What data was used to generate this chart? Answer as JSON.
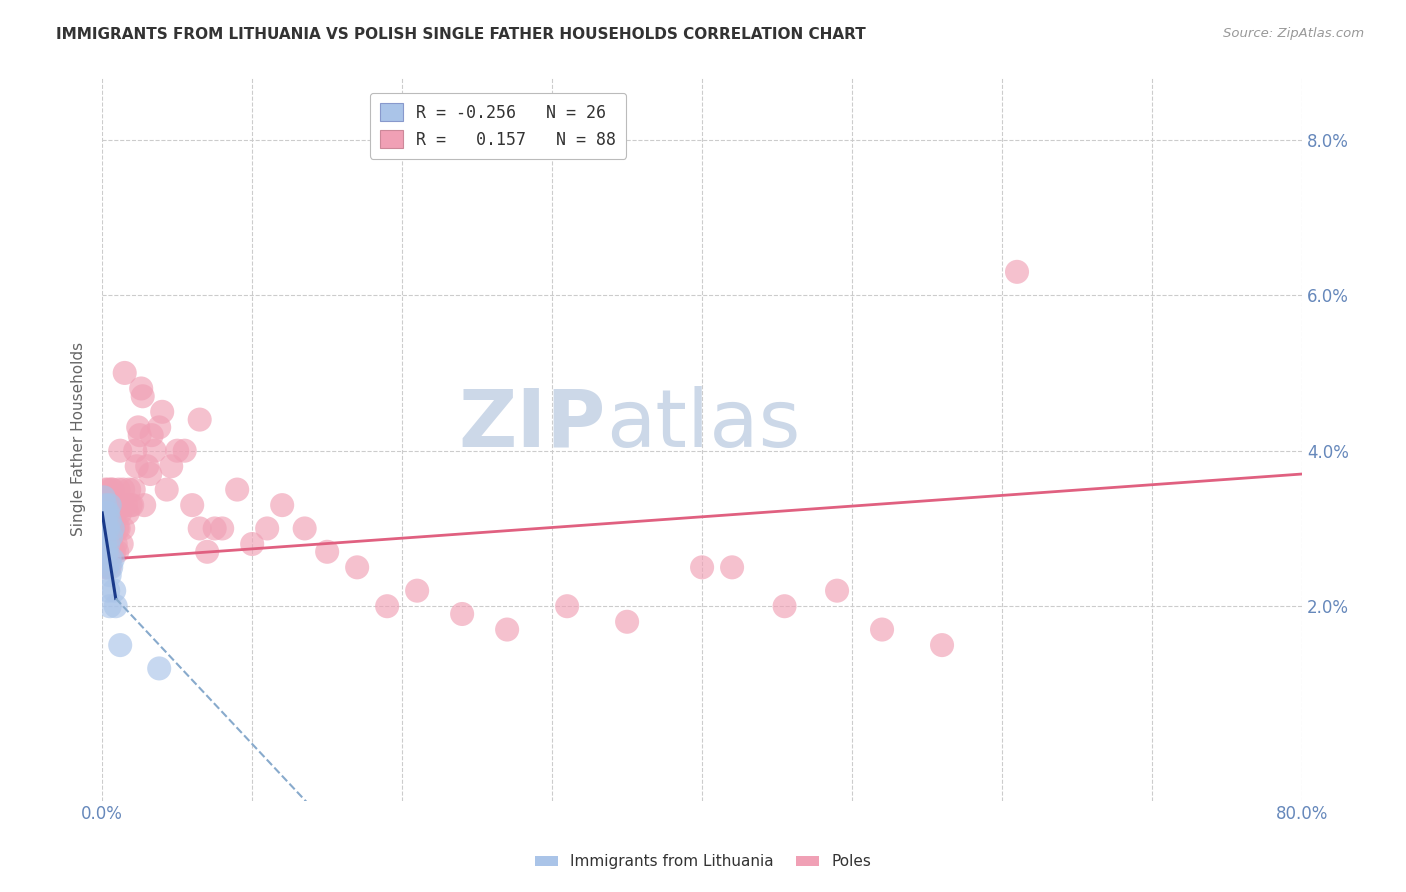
{
  "title": "IMMIGRANTS FROM LITHUANIA VS POLISH SINGLE FATHER HOUSEHOLDS CORRELATION CHART",
  "source": "Source: ZipAtlas.com",
  "ylabel": "Single Father Households",
  "xlim": [
    0.0,
    0.8
  ],
  "ylim": [
    -0.005,
    0.088
  ],
  "plot_ylim": [
    0.0,
    0.088
  ],
  "yticks": [
    0.0,
    0.02,
    0.04,
    0.06,
    0.08
  ],
  "ytick_labels_right": [
    "",
    "2.0%",
    "4.0%",
    "6.0%",
    "8.0%"
  ],
  "xticks": [
    0.0,
    0.1,
    0.2,
    0.3,
    0.4,
    0.5,
    0.6,
    0.7,
    0.8
  ],
  "xtick_labels": [
    "0.0%",
    "",
    "",
    "",
    "",
    "",
    "",
    "",
    "80.0%"
  ],
  "legend_line1": "R = -0.256   N = 26",
  "legend_line2": "R =   0.157   N = 88",
  "legend_color_blue": "#aac4e8",
  "legend_color_pink": "#f0a0b5",
  "series_blue": {
    "name": "Immigrants from Lithuania",
    "color": "#aac4e8",
    "x": [
      0.001,
      0.001,
      0.002,
      0.002,
      0.002,
      0.003,
      0.003,
      0.003,
      0.003,
      0.004,
      0.004,
      0.004,
      0.004,
      0.005,
      0.005,
      0.005,
      0.005,
      0.005,
      0.006,
      0.006,
      0.007,
      0.007,
      0.008,
      0.009,
      0.012,
      0.038
    ],
    "y": [
      0.034,
      0.03,
      0.033,
      0.031,
      0.028,
      0.032,
      0.03,
      0.027,
      0.025,
      0.032,
      0.03,
      0.028,
      0.022,
      0.033,
      0.031,
      0.026,
      0.024,
      0.02,
      0.029,
      0.025,
      0.03,
      0.026,
      0.022,
      0.02,
      0.015,
      0.012
    ]
  },
  "series_pink": {
    "name": "Poles",
    "color": "#f0a0b5",
    "x": [
      0.001,
      0.001,
      0.002,
      0.002,
      0.002,
      0.003,
      0.003,
      0.003,
      0.004,
      0.004,
      0.004,
      0.005,
      0.005,
      0.005,
      0.005,
      0.006,
      0.006,
      0.006,
      0.007,
      0.007,
      0.007,
      0.007,
      0.008,
      0.008,
      0.008,
      0.009,
      0.009,
      0.01,
      0.01,
      0.01,
      0.011,
      0.011,
      0.012,
      0.012,
      0.013,
      0.013,
      0.014,
      0.014,
      0.015,
      0.016,
      0.017,
      0.018,
      0.019,
      0.02,
      0.021,
      0.022,
      0.023,
      0.024,
      0.025,
      0.026,
      0.027,
      0.028,
      0.03,
      0.032,
      0.033,
      0.035,
      0.038,
      0.04,
      0.043,
      0.046,
      0.05,
      0.055,
      0.06,
      0.065,
      0.07,
      0.075,
      0.08,
      0.09,
      0.1,
      0.11,
      0.12,
      0.135,
      0.15,
      0.17,
      0.19,
      0.21,
      0.24,
      0.27,
      0.31,
      0.35,
      0.4,
      0.42,
      0.455,
      0.49,
      0.52,
      0.56,
      0.61,
      0.065
    ],
    "y": [
      0.033,
      0.03,
      0.035,
      0.03,
      0.025,
      0.033,
      0.03,
      0.028,
      0.035,
      0.032,
      0.028,
      0.033,
      0.03,
      0.027,
      0.025,
      0.035,
      0.033,
      0.028,
      0.035,
      0.032,
      0.03,
      0.027,
      0.033,
      0.03,
      0.027,
      0.032,
      0.028,
      0.033,
      0.03,
      0.027,
      0.035,
      0.03,
      0.04,
      0.032,
      0.033,
      0.028,
      0.035,
      0.03,
      0.05,
      0.033,
      0.032,
      0.035,
      0.033,
      0.033,
      0.035,
      0.04,
      0.038,
      0.043,
      0.042,
      0.048,
      0.047,
      0.033,
      0.038,
      0.037,
      0.042,
      0.04,
      0.043,
      0.045,
      0.035,
      0.038,
      0.04,
      0.04,
      0.033,
      0.03,
      0.027,
      0.03,
      0.03,
      0.035,
      0.028,
      0.03,
      0.033,
      0.03,
      0.027,
      0.025,
      0.02,
      0.022,
      0.019,
      0.017,
      0.02,
      0.018,
      0.025,
      0.025,
      0.02,
      0.022,
      0.017,
      0.015,
      0.063,
      0.044
    ]
  },
  "blue_trend_solid": {
    "x": [
      0.0,
      0.009
    ],
    "y": [
      0.032,
      0.021
    ]
  },
  "blue_trend_dashed": {
    "x": [
      0.009,
      0.15
    ],
    "y": [
      0.021,
      -0.008
    ]
  },
  "pink_trend": {
    "x": [
      0.0,
      0.8
    ],
    "y": [
      0.026,
      0.037
    ]
  },
  "blue_trend_color": "#1a3a8a",
  "blue_trend_dashed_color": "#88aacc",
  "pink_trend_color": "#e06080",
  "watermark_zip": "ZIP",
  "watermark_atlas": "atlas",
  "watermark_color": "#ccd8e8",
  "background_color": "#ffffff",
  "grid_color": "#cccccc",
  "title_fontsize": 11,
  "title_color": "#333333",
  "source_color": "#999999",
  "ylabel_color": "#666666",
  "tick_color": "#6688bb"
}
